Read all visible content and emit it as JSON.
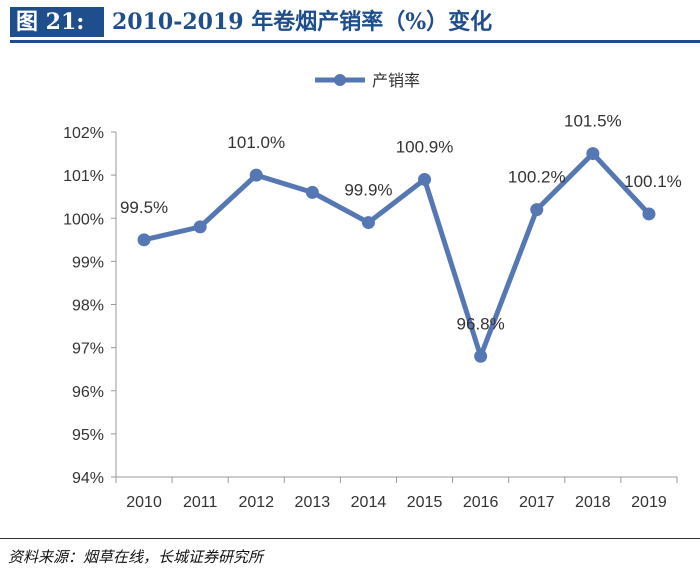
{
  "header": {
    "figure_label": "图 21:",
    "figure_title": "2010-2019 年卷烟产销率（%）变化"
  },
  "chart_data": {
    "type": "line",
    "title": "",
    "xlabel": "",
    "ylabel": "",
    "categories": [
      "2010",
      "2011",
      "2012",
      "2013",
      "2014",
      "2015",
      "2016",
      "2017",
      "2018",
      "2019"
    ],
    "series": [
      {
        "name": "产销率",
        "values": [
          99.5,
          99.8,
          101.0,
          100.6,
          99.9,
          100.9,
          96.8,
          100.2,
          101.5,
          100.1
        ],
        "data_labels": [
          "99.5%",
          "",
          "101.0%",
          "",
          "99.9%",
          "100.9%",
          "96.8%",
          "100.2%",
          "101.5%",
          "100.1%"
        ]
      }
    ],
    "y_ticks": [
      94,
      95,
      96,
      97,
      98,
      99,
      100,
      101,
      102
    ],
    "y_tick_labels": [
      "94%",
      "95%",
      "96%",
      "97%",
      "98%",
      "99%",
      "100%",
      "101%",
      "102%"
    ],
    "ylim": [
      94,
      102
    ],
    "grid": false,
    "legend_position": "top-center",
    "line_color": "#5577b3"
  },
  "footer": {
    "source": "资料来源：烟草在线，长城证券研究所"
  }
}
